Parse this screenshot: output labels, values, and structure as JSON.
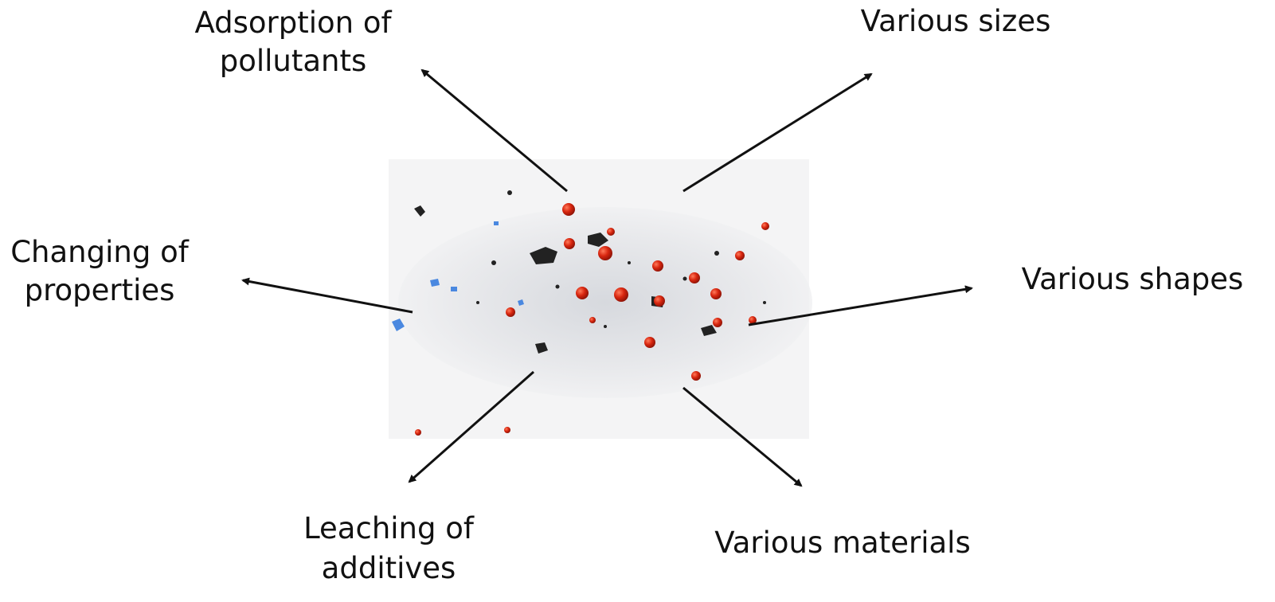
{
  "nodes": [
    {
      "lines": [
        "Adsorption of",
        "pollutants"
      ]
    },
    {
      "lines": [
        "Various sizes"
      ]
    },
    {
      "lines": [
        "Changing of",
        "properties"
      ]
    },
    {
      "lines": [
        "Various shapes"
      ]
    },
    {
      "lines": [
        "Leaching of",
        "additives"
      ]
    },
    {
      "lines": [
        "Various materials"
      ]
    }
  ]
}
